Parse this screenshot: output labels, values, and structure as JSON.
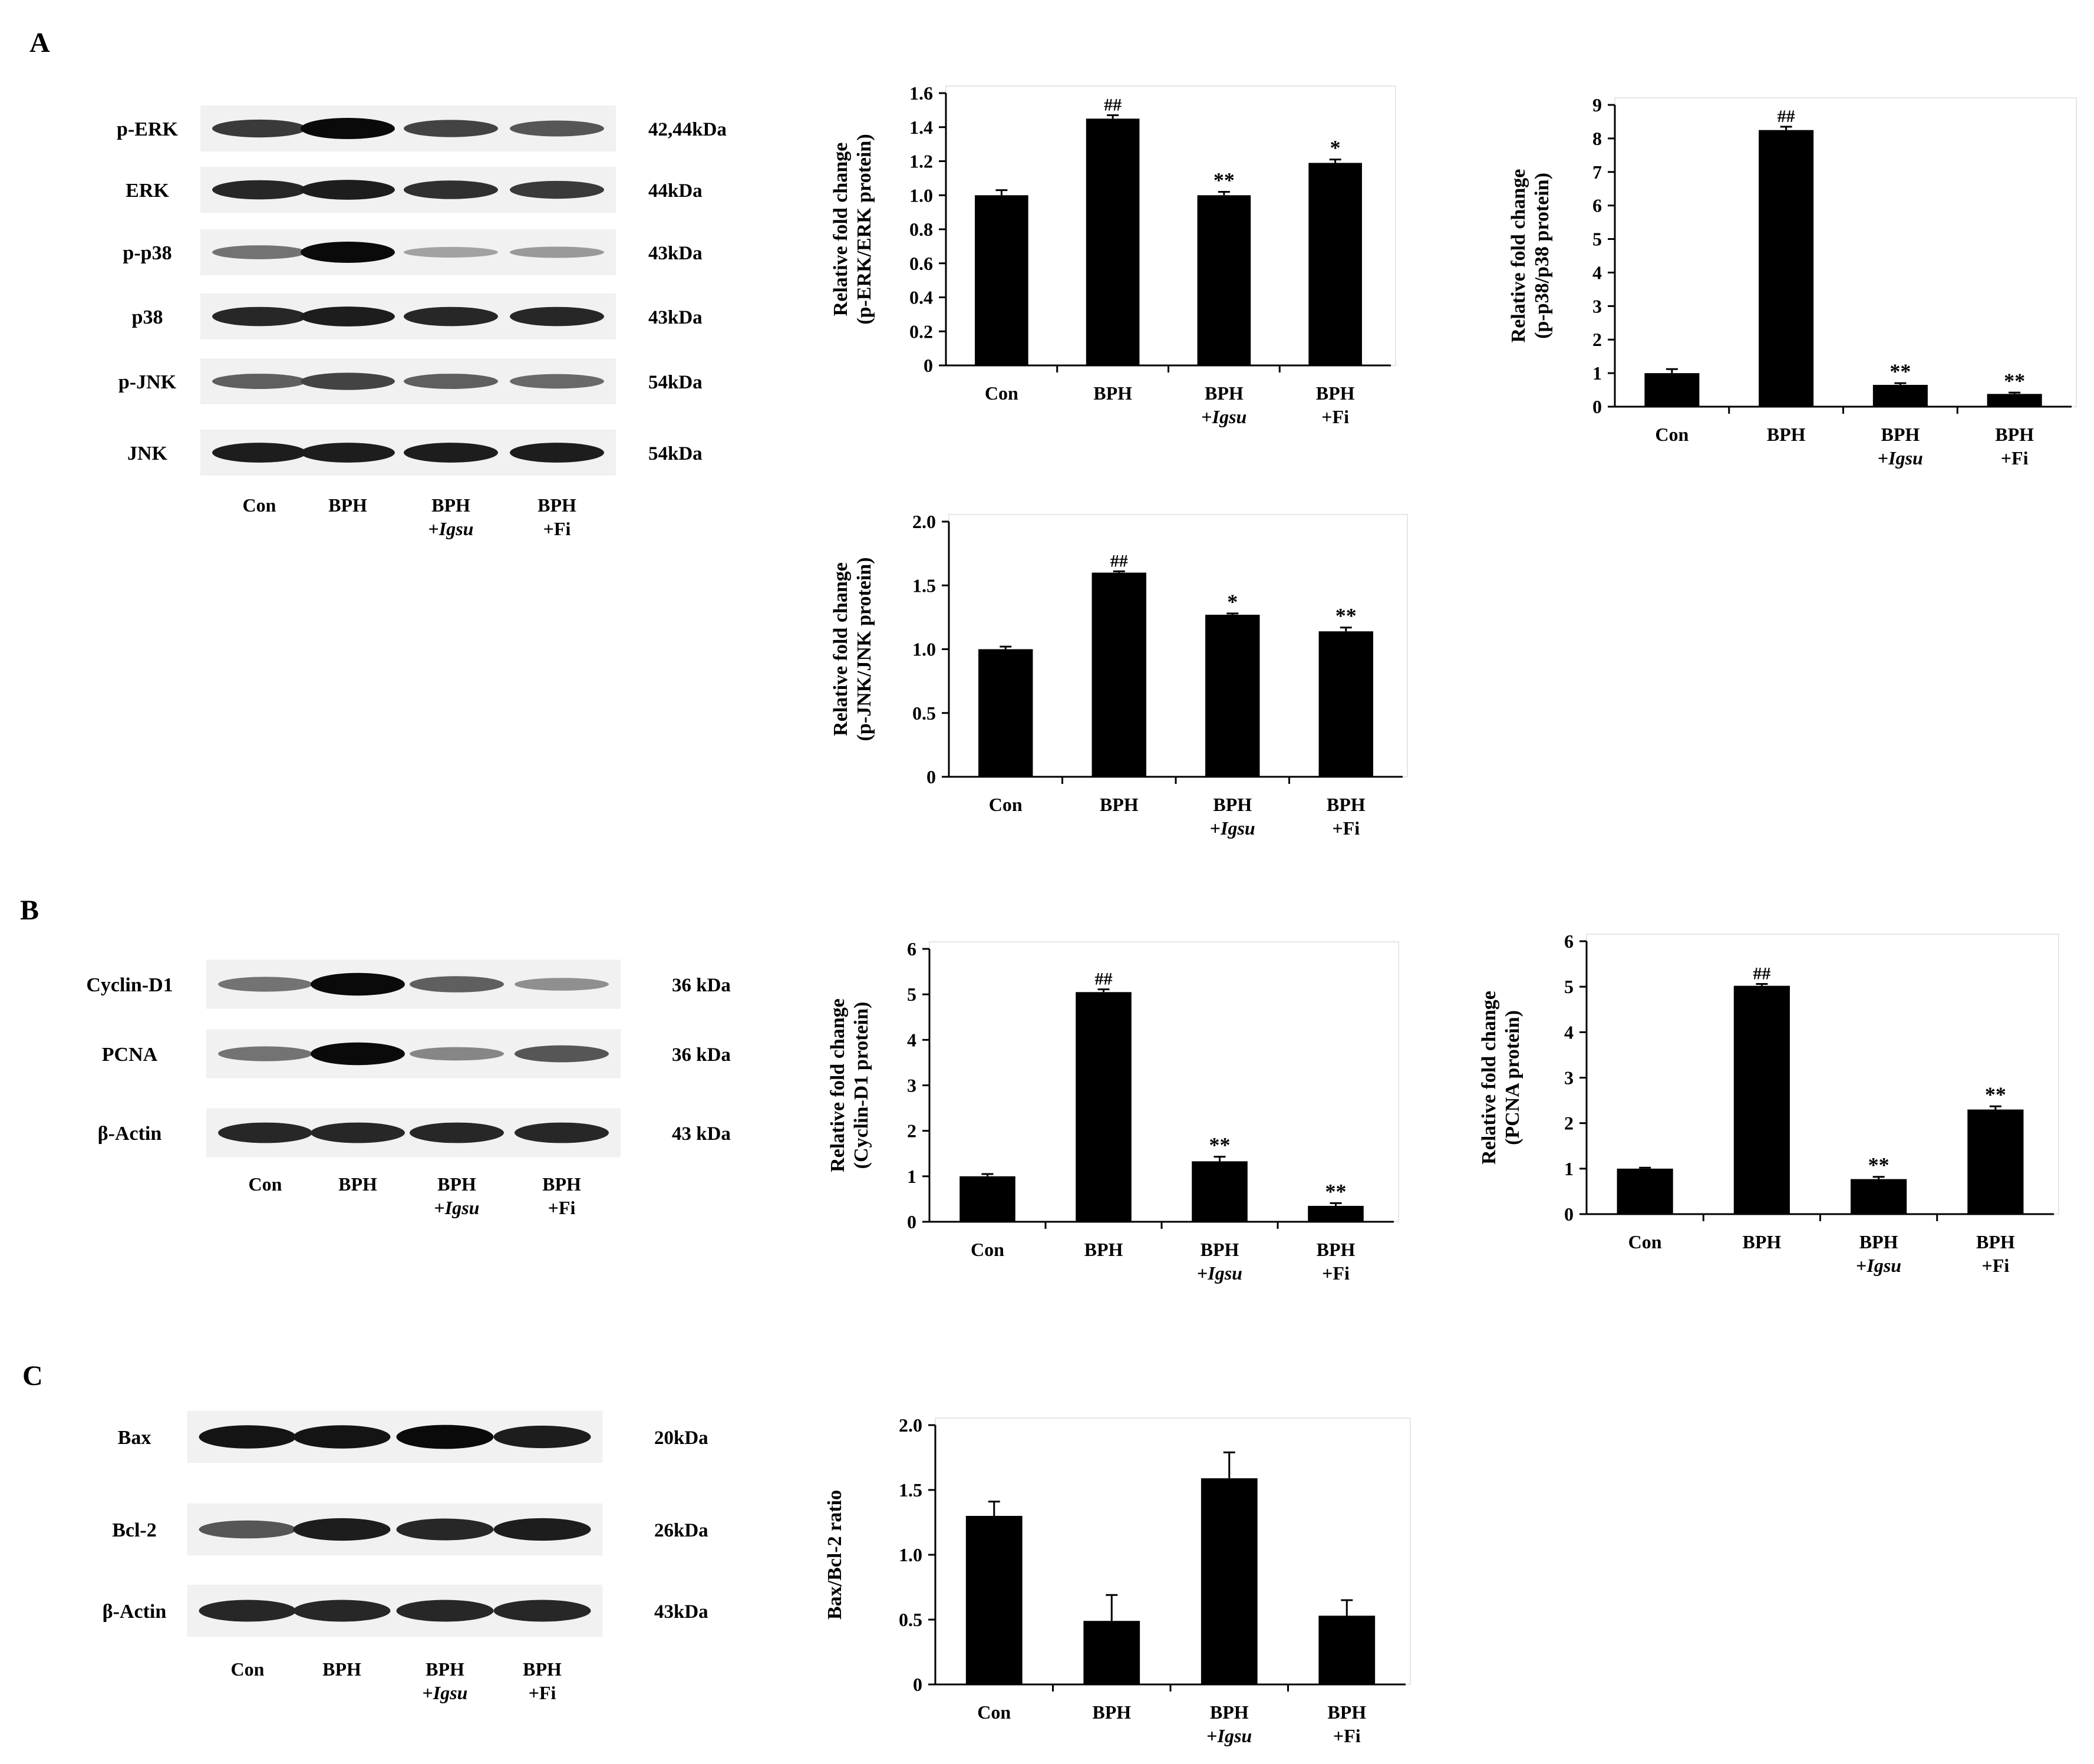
{
  "panels": {
    "A": {
      "letter": "A",
      "blot": {
        "rows": [
          {
            "name": "p-ERK",
            "kda": "42,44kDa"
          },
          {
            "name": "ERK",
            "kda": "44kDa"
          },
          {
            "name": "p-p38",
            "kda": "43kDa"
          },
          {
            "name": "p38",
            "kda": "43kDa"
          },
          {
            "name": "p-JNK",
            "kda": "54kDa"
          },
          {
            "name": "JNK",
            "kda": "54kDa"
          }
        ],
        "lanes": [
          {
            "line1": "Con",
            "line2": ""
          },
          {
            "line1": "BPH",
            "line2": ""
          },
          {
            "line1": "BPH",
            "line2": "+Igsu"
          },
          {
            "line1": "BPH",
            "line2": "+Fi"
          }
        ],
        "band_intensity": [
          [
            0.75,
            1.0,
            0.7,
            0.6
          ],
          [
            0.85,
            0.9,
            0.8,
            0.75
          ],
          [
            0.45,
            1.0,
            0.2,
            0.25
          ],
          [
            0.85,
            0.9,
            0.85,
            0.85
          ],
          [
            0.55,
            0.7,
            0.55,
            0.5
          ],
          [
            0.9,
            0.9,
            0.9,
            0.9
          ]
        ]
      }
    },
    "B": {
      "letter": "B",
      "blot": {
        "rows": [
          {
            "name": "Cyclin-D1",
            "kda": "36 kDa"
          },
          {
            "name": "PCNA",
            "kda": "36 kDa"
          },
          {
            "name": "β-Actin",
            "kda": "43 kDa"
          }
        ],
        "lanes": [
          {
            "line1": "Con",
            "line2": ""
          },
          {
            "line1": "BPH",
            "line2": ""
          },
          {
            "line1": "BPH",
            "line2": "+Igsu"
          },
          {
            "line1": "BPH",
            "line2": "+Fi"
          }
        ],
        "band_intensity": [
          [
            0.45,
            1.0,
            0.55,
            0.3
          ],
          [
            0.45,
            1.0,
            0.35,
            0.6
          ],
          [
            0.85,
            0.85,
            0.85,
            0.85
          ]
        ]
      }
    },
    "C": {
      "letter": "C",
      "blot": {
        "rows": [
          {
            "name": "Bax",
            "kda": "20kDa"
          },
          {
            "name": "Bcl-2",
            "kda": "26kDa"
          },
          {
            "name": "β-Actin",
            "kda": "43kDa"
          }
        ],
        "lanes": [
          {
            "line1": "Con",
            "line2": ""
          },
          {
            "line1": "BPH",
            "line2": ""
          },
          {
            "line1": "BPH",
            "line2": "+Igsu"
          },
          {
            "line1": "BPH",
            "line2": "+Fi"
          }
        ],
        "band_intensity": [
          [
            0.95,
            0.95,
            1.0,
            0.9
          ],
          [
            0.6,
            0.9,
            0.85,
            0.9
          ],
          [
            0.85,
            0.85,
            0.85,
            0.85
          ]
        ]
      }
    }
  },
  "chart_data": [
    {
      "id": "p-erk",
      "type": "bar",
      "ylabel_lines": [
        "Relative fold change",
        "(p-ERK/ERK protein)"
      ],
      "categories": [
        "Con",
        "BPH",
        "BPH +Igsu",
        "BPH +Fi"
      ],
      "category_lines": [
        [
          "Con",
          ""
        ],
        [
          "BPH",
          ""
        ],
        [
          "BPH",
          "+Igsu"
        ],
        [
          "BPH",
          "+Fi"
        ]
      ],
      "values": [
        1.0,
        1.45,
        1.0,
        1.19
      ],
      "errors": [
        0.03,
        0.02,
        0.02,
        0.02
      ],
      "annotations": [
        "",
        "##",
        "**",
        "*"
      ],
      "ylim": [
        0,
        1.6
      ],
      "yticks": [
        0,
        0.2,
        0.4,
        0.6,
        0.8,
        1.0,
        1.2,
        1.4,
        1.6
      ],
      "ytick_labels": [
        "0",
        "0.2",
        "0.4",
        "0.6",
        "0.8",
        "1.0",
        "1.2",
        "1.4",
        "1.6"
      ],
      "grid": false
    },
    {
      "id": "p-p38",
      "type": "bar",
      "ylabel_lines": [
        "Relative fold change",
        "(p-p38/p38 protein)"
      ],
      "categories": [
        "Con",
        "BPH",
        "BPH +Igsu",
        "BPH +Fi"
      ],
      "category_lines": [
        [
          "Con",
          ""
        ],
        [
          "BPH",
          ""
        ],
        [
          "BPH",
          "+Igsu"
        ],
        [
          "BPH",
          "+Fi"
        ]
      ],
      "values": [
        1.0,
        8.25,
        0.65,
        0.38
      ],
      "errors": [
        0.12,
        0.1,
        0.05,
        0.04
      ],
      "annotations": [
        "",
        "##",
        "**",
        "**"
      ],
      "ylim": [
        0,
        9
      ],
      "yticks": [
        0,
        1,
        2,
        3,
        4,
        5,
        6,
        7,
        8,
        9
      ],
      "ytick_labels": [
        "0",
        "1",
        "2",
        "3",
        "4",
        "5",
        "6",
        "7",
        "8",
        "9"
      ],
      "grid": false
    },
    {
      "id": "p-jnk",
      "type": "bar",
      "ylabel_lines": [
        "Relative fold change",
        "(p-JNK/JNK protein)"
      ],
      "categories": [
        "Con",
        "BPH",
        "BPH +Igsu",
        "BPH +Fi"
      ],
      "category_lines": [
        [
          "Con",
          ""
        ],
        [
          "BPH",
          ""
        ],
        [
          "BPH",
          "+Igsu"
        ],
        [
          "BPH",
          "+Fi"
        ]
      ],
      "values": [
        1.0,
        1.6,
        1.27,
        1.14
      ],
      "errors": [
        0.02,
        0.01,
        0.01,
        0.03
      ],
      "annotations": [
        "",
        "##",
        "*",
        "**"
      ],
      "ylim": [
        0,
        2.0
      ],
      "yticks": [
        0,
        0.5,
        1.0,
        1.5,
        2.0
      ],
      "ytick_labels": [
        "0",
        "0.5",
        "1.0",
        "1.5",
        "2.0"
      ],
      "grid": false
    },
    {
      "id": "cyclin-d1",
      "type": "bar",
      "ylabel_lines": [
        "Relative fold change",
        "(Cyclin-D1 protein)"
      ],
      "categories": [
        "Con",
        "BPH",
        "BPH +Igsu",
        "BPH +Fi"
      ],
      "category_lines": [
        [
          "Con",
          ""
        ],
        [
          "BPH",
          ""
        ],
        [
          "BPH",
          "+Igsu"
        ],
        [
          "BPH",
          "+Fi"
        ]
      ],
      "values": [
        1.0,
        5.05,
        1.33,
        0.35
      ],
      "errors": [
        0.05,
        0.06,
        0.1,
        0.06
      ],
      "annotations": [
        "",
        "##",
        "**",
        "**"
      ],
      "ylim": [
        0,
        6
      ],
      "yticks": [
        0,
        1,
        2,
        3,
        4,
        5,
        6
      ],
      "ytick_labels": [
        "0",
        "1",
        "2",
        "3",
        "4",
        "5",
        "6"
      ],
      "grid": false
    },
    {
      "id": "pcna",
      "type": "bar",
      "ylabel_lines": [
        "Relative fold change",
        "(PCNA protein)"
      ],
      "categories": [
        "Con",
        "BPH",
        "BPH +Igsu",
        "BPH +Fi"
      ],
      "category_lines": [
        [
          "Con",
          ""
        ],
        [
          "BPH",
          ""
        ],
        [
          "BPH",
          "+Igsu"
        ],
        [
          "BPH",
          "+Fi"
        ]
      ],
      "values": [
        1.0,
        5.02,
        0.77,
        2.3
      ],
      "errors": [
        0.02,
        0.04,
        0.05,
        0.07
      ],
      "annotations": [
        "",
        "##",
        "**",
        "**"
      ],
      "ylim": [
        0,
        6
      ],
      "yticks": [
        0,
        1,
        2,
        3,
        4,
        5,
        6
      ],
      "ytick_labels": [
        "0",
        "1",
        "2",
        "3",
        "4",
        "5",
        "6"
      ],
      "grid": false
    },
    {
      "id": "bax-bcl2",
      "type": "bar",
      "ylabel_lines": [
        "Bax/Bcl-2 ratio"
      ],
      "categories": [
        "Con",
        "BPH",
        "BPH +Igsu",
        "BPH +Fi"
      ],
      "category_lines": [
        [
          "Con",
          ""
        ],
        [
          "BPH",
          ""
        ],
        [
          "BPH",
          "+Igsu"
        ],
        [
          "BPH",
          "+Fi"
        ]
      ],
      "values": [
        1.3,
        0.49,
        1.59,
        0.53
      ],
      "errors": [
        0.11,
        0.2,
        0.2,
        0.12
      ],
      "annotations": [
        "",
        "",
        "",
        ""
      ],
      "ylim": [
        0,
        2.0
      ],
      "yticks": [
        0,
        0.5,
        1.0,
        1.5,
        2.0
      ],
      "ytick_labels": [
        "0",
        "0.5",
        "1.0",
        "1.5",
        "2.0"
      ],
      "grid": false
    }
  ]
}
